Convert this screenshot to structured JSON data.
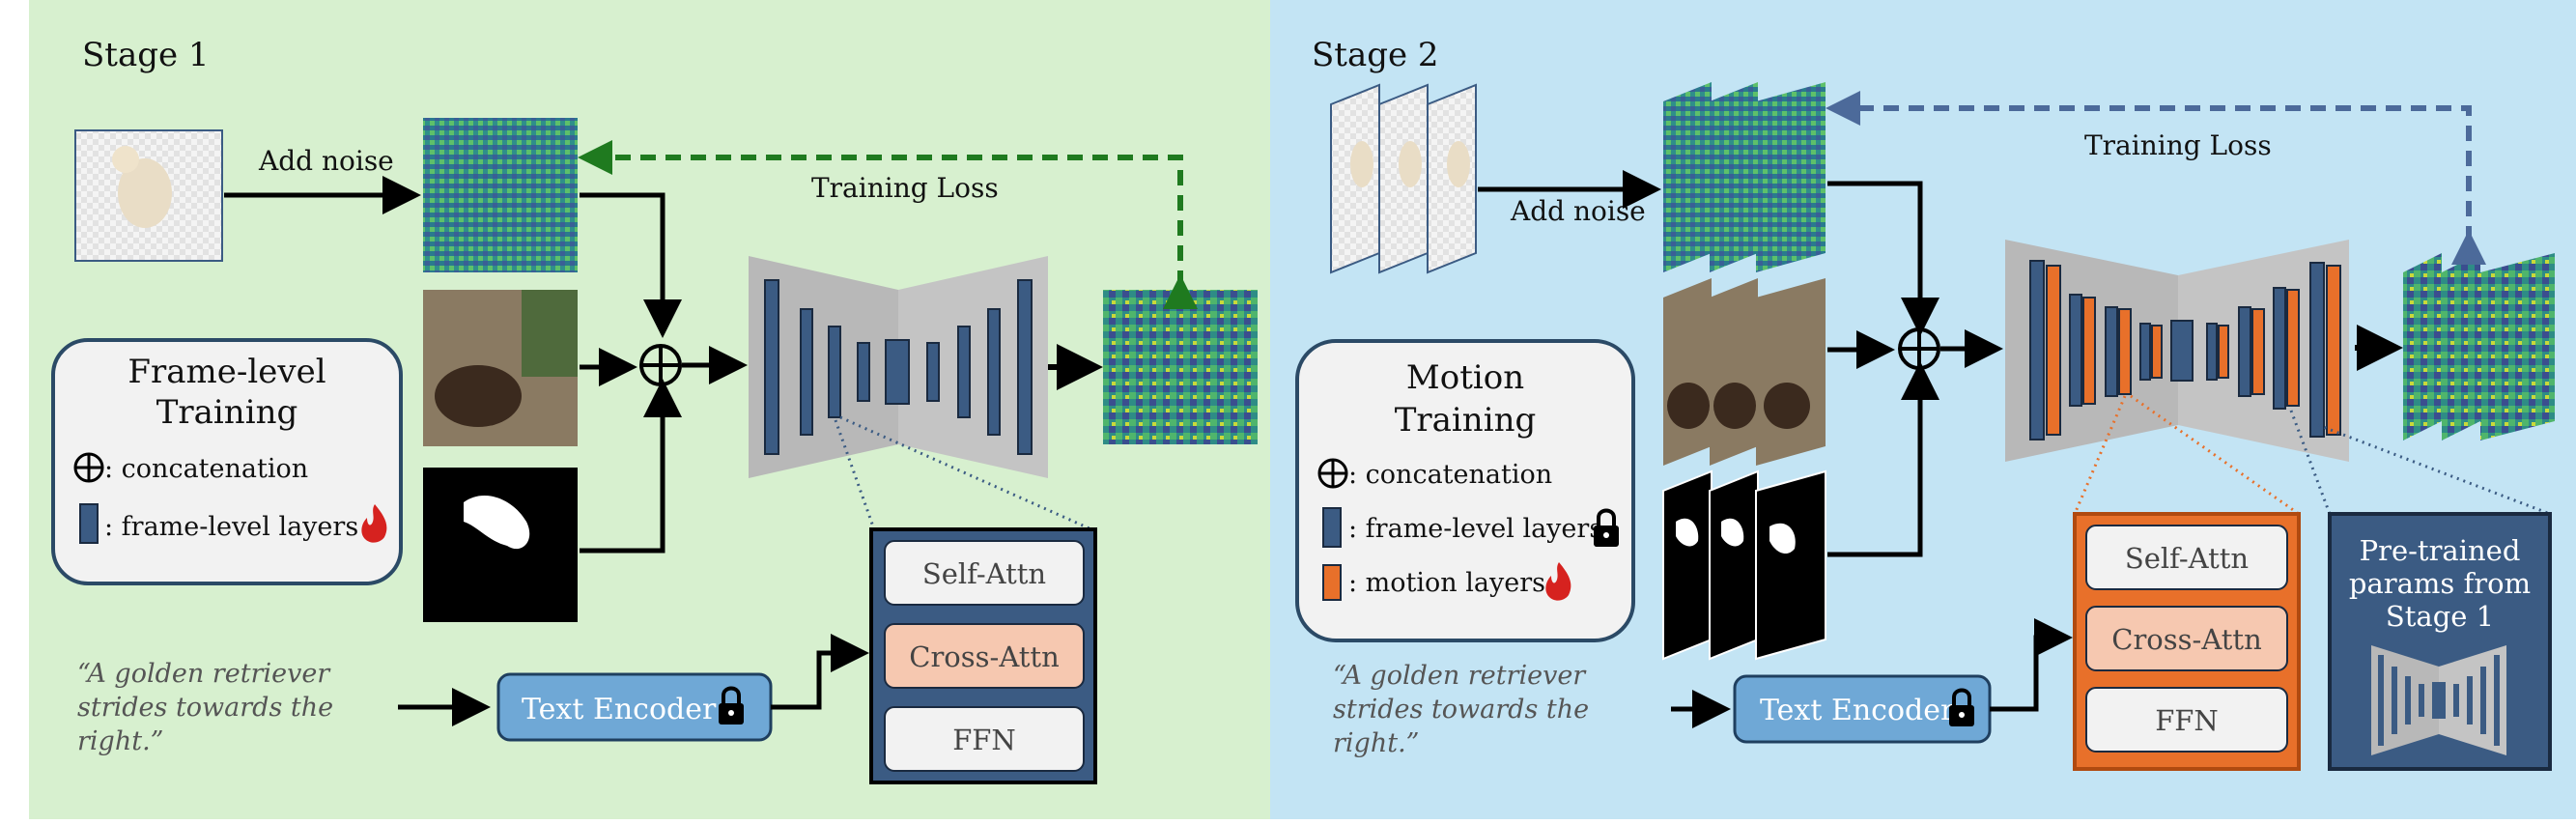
{
  "stage1": {
    "title": "Stage 1",
    "add_noise": "Add noise",
    "training_loss": "Training Loss",
    "legend": {
      "title": "Frame-level Training",
      "title_line1": "Frame-level",
      "title_line2": "Training",
      "concat": ": concatenation",
      "frame_layers": ": frame-level layers"
    },
    "prompt_line1": "“A golden retriever",
    "prompt_line2": "strides towards the",
    "prompt_line3": "right.”",
    "text_encoder": "Text Encoder",
    "block": {
      "self_attn": "Self-Attn",
      "cross_attn": "Cross-Attn",
      "ffn": "FFN"
    }
  },
  "stage2": {
    "title": "Stage 2",
    "add_noise": "Add noise",
    "training_loss": "Training Loss",
    "legend": {
      "title_line1": "Motion",
      "title_line2": "Training",
      "concat": ": concatenation",
      "frame_layers": ": frame-level layers",
      "motion_layers": ": motion layers"
    },
    "prompt_line1": "“A golden retriever",
    "prompt_line2": "strides towards the",
    "prompt_line3": "right.”",
    "text_encoder": "Text Encoder",
    "block": {
      "self_attn": "Self-Attn",
      "cross_attn": "Cross-Attn",
      "ffn": "FFN"
    },
    "pretrained_line1": "Pre-trained",
    "pretrained_line2": "params from",
    "pretrained_line3": "Stage 1"
  },
  "colors": {
    "stage1_bg": "#d7f0cf",
    "stage2_bg": "#c3e4f4",
    "frame_layer": "#3b5b83",
    "motion_layer": "#e8702a",
    "loss_green": "#1f7a1f",
    "loss_blue": "#4c6a9a",
    "text_encoder": "#6fa8d6",
    "cross_attn": "#f6c8b0"
  }
}
